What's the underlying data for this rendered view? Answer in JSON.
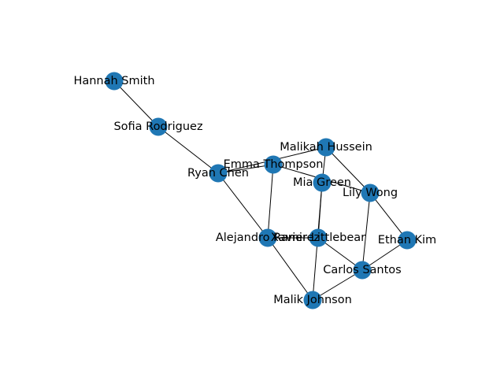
{
  "graph": {
    "node_color": "#1f77b4",
    "edge_color": "#000000",
    "nodes": [
      {
        "id": "hannah_smith",
        "label": "Hannah Smith"
      },
      {
        "id": "sofia_rodriguez",
        "label": "Sofia Rodriguez"
      },
      {
        "id": "ryan_chen",
        "label": "Ryan Chen"
      },
      {
        "id": "emma_thompson",
        "label": "Emma Thompson"
      },
      {
        "id": "malikah_hussein",
        "label": "Malikah Hussein"
      },
      {
        "id": "mia_green",
        "label": "Mia Green"
      },
      {
        "id": "lily_wong",
        "label": "Lily Wong"
      },
      {
        "id": "alejandro_ramirez",
        "label": "Alejandro Ramirez"
      },
      {
        "id": "xavier_littlebear",
        "label": "Xavier Littlebear"
      },
      {
        "id": "ethan_kim",
        "label": "Ethan Kim"
      },
      {
        "id": "carlos_santos",
        "label": "Carlos Santos"
      },
      {
        "id": "malik_johnson",
        "label": "Malik Johnson"
      }
    ],
    "edges": [
      [
        "hannah_smith",
        "sofia_rodriguez"
      ],
      [
        "sofia_rodriguez",
        "ryan_chen"
      ],
      [
        "ryan_chen",
        "emma_thompson"
      ],
      [
        "ryan_chen",
        "malikah_hussein"
      ],
      [
        "ryan_chen",
        "alejandro_ramirez"
      ],
      [
        "emma_thompson",
        "alejandro_ramirez"
      ],
      [
        "emma_thompson",
        "lily_wong"
      ],
      [
        "malikah_hussein",
        "mia_green"
      ],
      [
        "malikah_hussein",
        "lily_wong"
      ],
      [
        "mia_green",
        "xavier_littlebear"
      ],
      [
        "mia_green",
        "malik_johnson"
      ],
      [
        "lily_wong",
        "ethan_kim"
      ],
      [
        "lily_wong",
        "carlos_santos"
      ],
      [
        "alejandro_ramirez",
        "xavier_littlebear"
      ],
      [
        "alejandro_ramirez",
        "malik_johnson"
      ],
      [
        "xavier_littlebear",
        "carlos_santos"
      ],
      [
        "ethan_kim",
        "carlos_santos"
      ],
      [
        "carlos_santos",
        "malik_johnson"
      ]
    ]
  }
}
